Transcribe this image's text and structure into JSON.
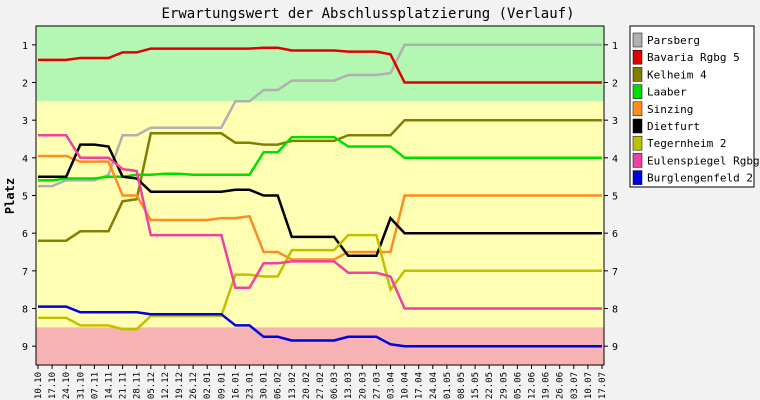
{
  "chart_data": {
    "type": "line",
    "title": "Erwartungswert der Abschlussplatzierung (Verlauf)",
    "ylabel": "Platz",
    "xlabel": "",
    "ylim": [
      0.5,
      9.5
    ],
    "y_reversed": true,
    "y_ticks": [
      1,
      2,
      3,
      4,
      5,
      6,
      7,
      8,
      9
    ],
    "categories": [
      "10.10",
      "17.10",
      "24.10",
      "31.10",
      "07.11",
      "14.11",
      "21.11",
      "28.11",
      "05.12",
      "12.12",
      "19.12",
      "26.12",
      "02.01",
      "09.01",
      "16.01",
      "23.01",
      "30.01",
      "06.02",
      "13.02",
      "20.02",
      "27.02",
      "06.03",
      "13.03",
      "20.03",
      "27.03",
      "03.04",
      "10.04",
      "17.04",
      "24.04",
      "01.05",
      "08.05",
      "15.05",
      "22.05",
      "29.05",
      "05.06",
      "12.06",
      "19.06",
      "26.06",
      "03.07",
      "10.07",
      "17.07"
    ],
    "visible_categories": 29,
    "zones": [
      {
        "from": 0.5,
        "to": 2.5,
        "color": "#b3f7b3"
      },
      {
        "from": 2.5,
        "to": 8.5,
        "color": "#ffffb3"
      },
      {
        "from": 8.5,
        "to": 9.5,
        "color": "#f7b3b3"
      }
    ],
    "legend_position": "right",
    "series": [
      {
        "name": "Parsberg",
        "color": "#b0b0b0",
        "values": [
          4.75,
          4.75,
          4.6,
          4.6,
          4.6,
          4.45,
          3.4,
          3.4,
          3.2,
          3.2,
          3.2,
          3.2,
          3.2,
          3.2,
          2.5,
          2.5,
          2.2,
          2.2,
          1.95,
          1.95,
          1.95,
          1.95,
          1.8,
          1.8,
          1.8,
          1.75,
          1,
          1,
          1,
          1,
          1,
          1,
          1,
          1,
          1,
          1,
          1,
          1,
          1,
          1,
          1
        ]
      },
      {
        "name": "Bavaria Rgbg 5",
        "color": "#e00000",
        "values": [
          1.4,
          1.4,
          1.4,
          1.35,
          1.35,
          1.35,
          1.2,
          1.2,
          1.1,
          1.1,
          1.1,
          1.1,
          1.1,
          1.1,
          1.1,
          1.1,
          1.08,
          1.08,
          1.15,
          1.15,
          1.15,
          1.15,
          1.18,
          1.18,
          1.18,
          1.25,
          2,
          2,
          2,
          2,
          2,
          2,
          2,
          2,
          2,
          2,
          2,
          2,
          2,
          2,
          2
        ]
      },
      {
        "name": "Kelheim 4",
        "color": "#808000",
        "values": [
          6.2,
          6.2,
          6.2,
          5.95,
          5.95,
          5.95,
          5.15,
          5.1,
          3.35,
          3.35,
          3.35,
          3.35,
          3.35,
          3.35,
          3.6,
          3.6,
          3.65,
          3.65,
          3.55,
          3.55,
          3.55,
          3.55,
          3.4,
          3.4,
          3.4,
          3.4,
          3,
          3,
          3,
          3,
          3,
          3,
          3,
          3,
          3,
          3,
          3,
          3,
          3,
          3,
          3
        ]
      },
      {
        "name": "Laaber",
        "color": "#00e000",
        "values": [
          4.6,
          4.6,
          4.55,
          4.55,
          4.55,
          4.5,
          4.5,
          4.45,
          4.45,
          4.42,
          4.42,
          4.45,
          4.45,
          4.45,
          4.45,
          4.45,
          3.85,
          3.85,
          3.45,
          3.45,
          3.45,
          3.45,
          3.7,
          3.7,
          3.7,
          3.7,
          4,
          4,
          4,
          4,
          4,
          4,
          4,
          4,
          4,
          4,
          4,
          4,
          4,
          4,
          4
        ]
      },
      {
        "name": "Sinzing",
        "color": "#ff8c20",
        "values": [
          3.95,
          3.95,
          3.95,
          4.1,
          4.1,
          4.1,
          5.0,
          5.0,
          5.65,
          5.65,
          5.65,
          5.65,
          5.65,
          5.6,
          5.6,
          5.55,
          6.5,
          6.5,
          6.7,
          6.7,
          6.7,
          6.7,
          6.5,
          6.5,
          6.5,
          6.5,
          5,
          5,
          5,
          5,
          5,
          5,
          5,
          5,
          5,
          5,
          5,
          5,
          5,
          5,
          5
        ]
      },
      {
        "name": "Dietfurt",
        "color": "#000000",
        "values": [
          4.5,
          4.5,
          4.5,
          3.65,
          3.65,
          3.7,
          4.5,
          4.55,
          4.9,
          4.9,
          4.9,
          4.9,
          4.9,
          4.9,
          4.85,
          4.85,
          5.0,
          5.0,
          6.1,
          6.1,
          6.1,
          6.1,
          6.6,
          6.6,
          6.6,
          5.6,
          6,
          6,
          6,
          6,
          6,
          6,
          6,
          6,
          6,
          6,
          6,
          6,
          6,
          6,
          6
        ]
      },
      {
        "name": "Tegernheim 2",
        "color": "#c0c000",
        "values": [
          8.25,
          8.25,
          8.25,
          8.45,
          8.45,
          8.45,
          8.55,
          8.55,
          8.2,
          8.2,
          8.2,
          8.2,
          8.2,
          8.2,
          7.1,
          7.1,
          7.15,
          7.15,
          6.45,
          6.45,
          6.45,
          6.45,
          6.05,
          6.05,
          6.05,
          7.5,
          7,
          7,
          7,
          7,
          7,
          7,
          7,
          7,
          7,
          7,
          7,
          7,
          7,
          7,
          7
        ]
      },
      {
        "name": "Eulenspiegel Rgbg",
        "color": "#f040a0",
        "values": [
          3.4,
          3.4,
          3.4,
          4.0,
          4.0,
          4.0,
          4.3,
          4.35,
          6.05,
          6.05,
          6.05,
          6.05,
          6.05,
          6.05,
          7.45,
          7.45,
          6.8,
          6.8,
          6.75,
          6.75,
          6.75,
          6.75,
          7.05,
          7.05,
          7.05,
          7.15,
          8,
          8,
          8,
          8,
          8,
          8,
          8,
          8,
          8,
          8,
          8,
          8,
          8,
          8,
          8
        ]
      },
      {
        "name": "Burglengenfeld 2",
        "color": "#0000e0",
        "values": [
          7.95,
          7.95,
          7.95,
          8.1,
          8.1,
          8.1,
          8.1,
          8.1,
          8.15,
          8.15,
          8.15,
          8.15,
          8.15,
          8.15,
          8.45,
          8.45,
          8.75,
          8.75,
          8.85,
          8.85,
          8.85,
          8.85,
          8.75,
          8.75,
          8.75,
          8.95,
          9,
          9,
          9,
          9,
          9,
          9,
          9,
          9,
          9,
          9,
          9,
          9,
          9,
          9,
          9
        ]
      }
    ]
  }
}
